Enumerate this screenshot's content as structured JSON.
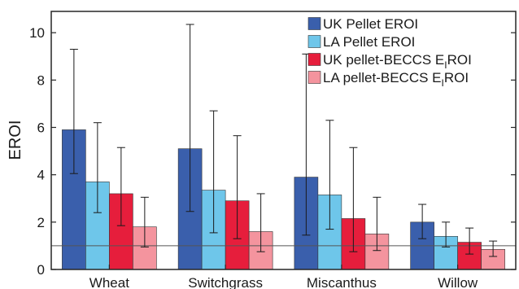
{
  "chart_data": {
    "type": "bar",
    "title": "",
    "xlabel": "",
    "ylabel": "EROI",
    "ylim": [
      0,
      10.9
    ],
    "yticks": [
      0,
      2,
      4,
      6,
      8,
      10
    ],
    "ytick_labels": [
      "0",
      "2",
      "4",
      "6",
      "8",
      "10"
    ],
    "grid": false,
    "legend_position": "top-right",
    "categories": [
      "Wheat",
      "Switchgrass",
      "Miscanthus",
      "Willow"
    ],
    "reference_line": 1.0,
    "series": [
      {
        "name": "UK Pellet EROI",
        "legend_main": "UK Pellet EROI",
        "legend_sub": "",
        "legend_tail": "",
        "color": "#3a5fac",
        "values": [
          5.9,
          5.1,
          3.9,
          2.0
        ],
        "err_low": [
          4.05,
          2.45,
          1.45,
          1.3
        ],
        "err_high": [
          9.3,
          10.35,
          9.1,
          2.75
        ]
      },
      {
        "name": "LA Pellet EROI",
        "legend_main": "LA Pellet EROI",
        "legend_sub": "",
        "legend_tail": "",
        "color": "#6ec6ea",
        "values": [
          3.7,
          3.35,
          3.15,
          1.4
        ],
        "err_low": [
          2.4,
          1.55,
          1.7,
          0.95
        ],
        "err_high": [
          6.2,
          6.7,
          6.3,
          2.0
        ]
      },
      {
        "name": "UK pellet-BECCS EIROI",
        "legend_main": "UK pellet-BECCS E",
        "legend_sub": "I",
        "legend_tail": "ROI",
        "color": "#e61e3c",
        "values": [
          3.2,
          2.9,
          2.15,
          1.15
        ],
        "err_low": [
          1.85,
          1.3,
          0.75,
          0.65
        ],
        "err_high": [
          5.15,
          5.65,
          5.15,
          1.75
        ]
      },
      {
        "name": "LA pellet-BECCS EIROI",
        "legend_main": "LA pellet-BECCS E",
        "legend_sub": "I",
        "legend_tail": "ROI",
        "color": "#f4949e",
        "values": [
          1.8,
          1.6,
          1.5,
          0.85
        ],
        "err_low": [
          0.95,
          0.75,
          0.8,
          0.55
        ],
        "err_high": [
          3.05,
          3.2,
          3.05,
          1.2
        ]
      }
    ]
  }
}
